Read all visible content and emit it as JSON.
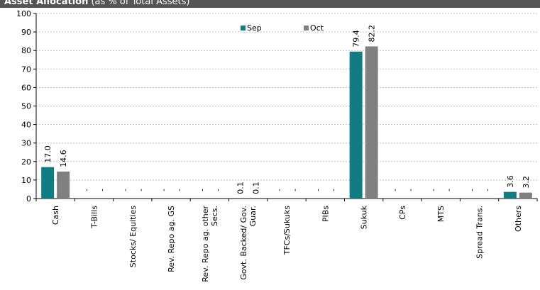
{
  "header": {
    "title": "Asset Allocation",
    "subtitle": "(as % of Total Assets)"
  },
  "colors": {
    "header_bg": "#555555",
    "sep": "#127c84",
    "oct": "#808080",
    "grid": "#bfbfbf",
    "axis": "#000000"
  },
  "chart_data": {
    "type": "bar",
    "title": "Asset Allocation (as % of Total Assets)",
    "xlabel": "",
    "ylabel": "",
    "ylim": [
      0,
      100
    ],
    "yticks": [
      0,
      10,
      20,
      30,
      40,
      50,
      60,
      70,
      80,
      90,
      100
    ],
    "grid": true,
    "legend_position": "top-center",
    "categories": [
      "Cash",
      "T-Bills",
      "Stocks/ Equities",
      "Rev. Repo ag. GS",
      "Rev. Repo ag. other Secs.",
      "Govt. Backed/ Gov. Guar.",
      "TFCs/Sukuks",
      "PIBs",
      "Sukuk",
      "CPs",
      "MTS",
      "Spread Trans.",
      "Others"
    ],
    "category_lines": [
      [
        "Cash"
      ],
      [
        "T-Bills"
      ],
      [
        "Stocks/ Equities"
      ],
      [
        "Rev. Repo ag. GS"
      ],
      [
        "Rev. Repo ag. other",
        "Secs."
      ],
      [
        "Govt. Backed/ Gov.",
        "Guar."
      ],
      [
        "TFCs/Sukuks"
      ],
      [
        "PIBs"
      ],
      [
        "Sukuk"
      ],
      [
        "CPs"
      ],
      [
        "MTS"
      ],
      [
        "Spread Trans."
      ],
      [
        "Others"
      ]
    ],
    "series": [
      {
        "name": "Sep",
        "color": "#127c84",
        "values": [
          17.0,
          0,
          0,
          0,
          0,
          0.1,
          0,
          0,
          79.4,
          0,
          0,
          0,
          3.6
        ],
        "labels": [
          "17.0",
          "-",
          "-",
          "-",
          "-",
          "0.1",
          "-",
          "-",
          "79.4",
          "-",
          "-",
          "-",
          "3.6"
        ]
      },
      {
        "name": "Oct",
        "color": "#808080",
        "values": [
          14.6,
          0,
          0,
          0,
          0,
          0.1,
          0,
          0,
          82.2,
          0,
          0,
          0,
          3.2
        ],
        "labels": [
          "14.6",
          "-",
          "-",
          "-",
          "-",
          "0.1",
          "-",
          "-",
          "82.2",
          "-",
          "-",
          "-",
          "3.2"
        ]
      }
    ]
  }
}
